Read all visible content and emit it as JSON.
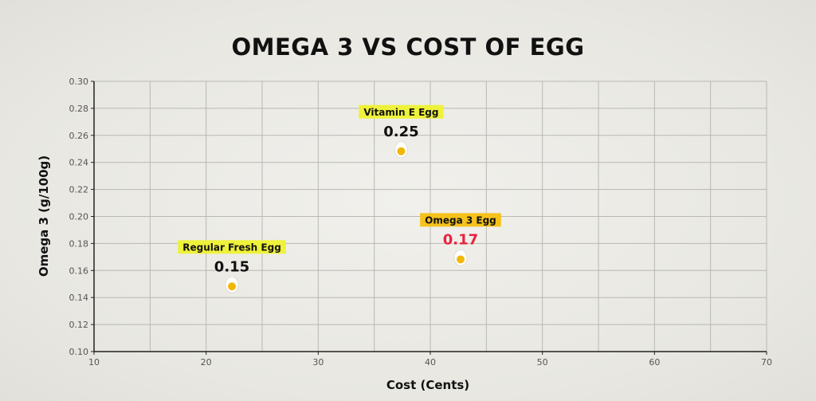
{
  "chart_data": {
    "type": "scatter",
    "title": "OMEGA 3 VS COST OF EGG",
    "xlabel": "Cost (Cents)",
    "ylabel": "Omega 3 (g/100g)",
    "xlim": [
      10,
      70
    ],
    "ylim": [
      0.1,
      0.3
    ],
    "x_ticks": [
      "10",
      "20",
      "30",
      "40",
      "50",
      "60",
      "70"
    ],
    "y_ticks": [
      "0.10",
      "0.12",
      "0.14",
      "0.16",
      "0.18",
      "0.20",
      "0.22",
      "0.24",
      "0.26",
      "0.28",
      "0.30"
    ],
    "grid": true,
    "points": [
      {
        "name": "Regular Fresh Egg",
        "x": 22.3,
        "y": 0.15,
        "label": "0.15",
        "label_color": "#111111",
        "highlight": "#eef23a"
      },
      {
        "name": "Vitamin E Egg",
        "x": 37.4,
        "y": 0.25,
        "label": "0.25",
        "label_color": "#111111",
        "highlight": "#eef23a"
      },
      {
        "name": "Omega 3 Egg",
        "x": 42.7,
        "y": 0.17,
        "label": "0.17",
        "label_color": "#e8223f",
        "highlight": "#f5c21b"
      }
    ],
    "marker": "egg-icon"
  },
  "colors": {
    "grid": "#b9b8b2",
    "axis": "#222222",
    "egg_white": "#ffffff",
    "egg_yolk": "#f2b705"
  }
}
